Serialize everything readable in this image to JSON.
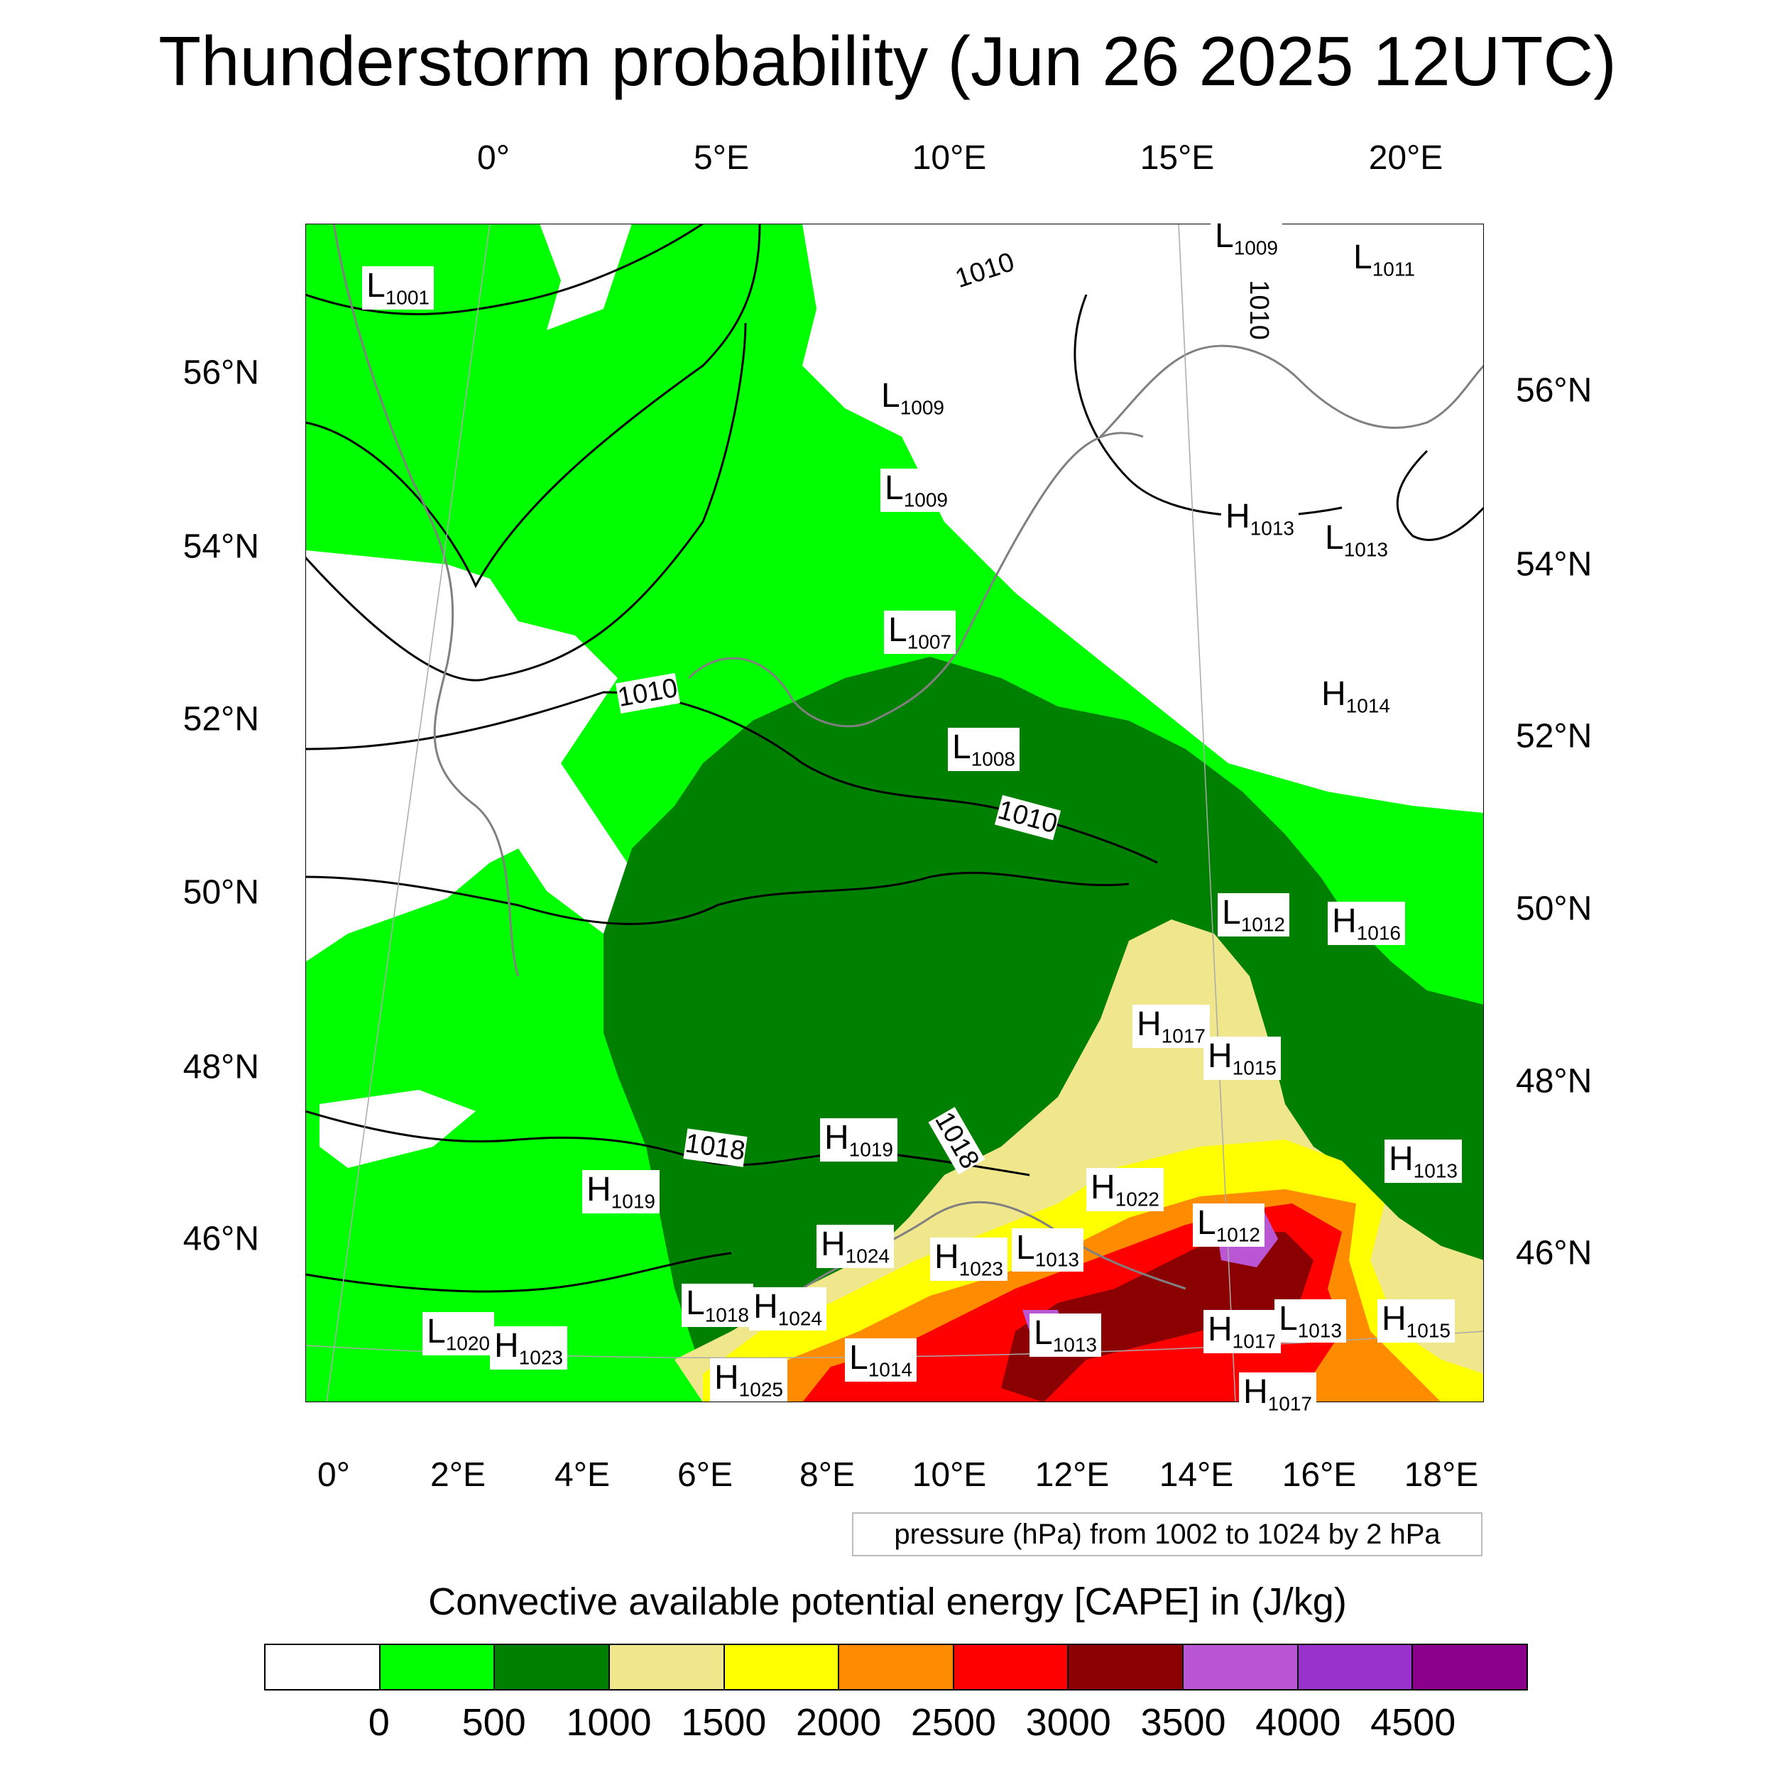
{
  "title": "Thunderstorm probability (Jun 26 2025 12UTC)",
  "map": {
    "lon_labels_top": [
      "0°",
      "5°E",
      "10°E",
      "15°E",
      "20°E"
    ],
    "lon_labels_bottom": [
      "0°",
      "2°E",
      "4°E",
      "6°E",
      "8°E",
      "10°E",
      "12°E",
      "14°E",
      "16°E",
      "18°E"
    ],
    "lat_labels_left": [
      "56°N",
      "54°N",
      "52°N",
      "50°N",
      "48°N",
      "46°N"
    ],
    "lat_labels_right": [
      "56°N",
      "54°N",
      "52°N",
      "50°N",
      "48°N",
      "46°N"
    ],
    "isobar_labels": [
      "1010",
      "1010",
      "1010",
      "1010",
      "1018",
      "1018"
    ],
    "pressure_centers": [
      {
        "type": "L",
        "value": "1001"
      },
      {
        "type": "L",
        "value": "1009"
      },
      {
        "type": "L",
        "value": "1011"
      },
      {
        "type": "L",
        "value": "1009"
      },
      {
        "type": "L",
        "value": "1009"
      },
      {
        "type": "H",
        "value": "1013"
      },
      {
        "type": "L",
        "value": "1013"
      },
      {
        "type": "L",
        "value": "1007"
      },
      {
        "type": "H",
        "value": "1014"
      },
      {
        "type": "L",
        "value": "1008"
      },
      {
        "type": "L",
        "value": "1012"
      },
      {
        "type": "H",
        "value": "1016"
      },
      {
        "type": "H",
        "value": "1017"
      },
      {
        "type": "H",
        "value": "1015"
      },
      {
        "type": "H",
        "value": "1019"
      },
      {
        "type": "H",
        "value": "1019"
      },
      {
        "type": "H",
        "value": "1022"
      },
      {
        "type": "L",
        "value": "1012"
      },
      {
        "type": "H",
        "value": "1013"
      },
      {
        "type": "H",
        "value": "1024"
      },
      {
        "type": "H",
        "value": "1023"
      },
      {
        "type": "L",
        "value": "1013"
      },
      {
        "type": "L",
        "value": "1018"
      },
      {
        "type": "H",
        "value": "1024"
      },
      {
        "type": "L",
        "value": "1020"
      },
      {
        "type": "H",
        "value": "1023"
      },
      {
        "type": "L",
        "value": "1013"
      },
      {
        "type": "H",
        "value": "1017"
      },
      {
        "type": "L",
        "value": "1013"
      },
      {
        "type": "H",
        "value": "1015"
      },
      {
        "type": "L",
        "value": "1014"
      },
      {
        "type": "H",
        "value": "1025"
      },
      {
        "type": "H",
        "value": "1017"
      }
    ],
    "contour_info": "pressure (hPa) from 1002 to 1024 by 2 hPa"
  },
  "colorbar": {
    "title": "Convective available potential energy [CAPE] in (J/kg)",
    "colors": [
      "#ffffff",
      "#00ff00",
      "#008000",
      "#f0e68c",
      "#ffff00",
      "#ff8c00",
      "#ff0000",
      "#8b0000",
      "#ba55d3",
      "#9932cc",
      "#8b008b"
    ],
    "ticks": [
      "0",
      "500",
      "1000",
      "1500",
      "2000",
      "2500",
      "3000",
      "3500",
      "4000",
      "4500"
    ]
  }
}
